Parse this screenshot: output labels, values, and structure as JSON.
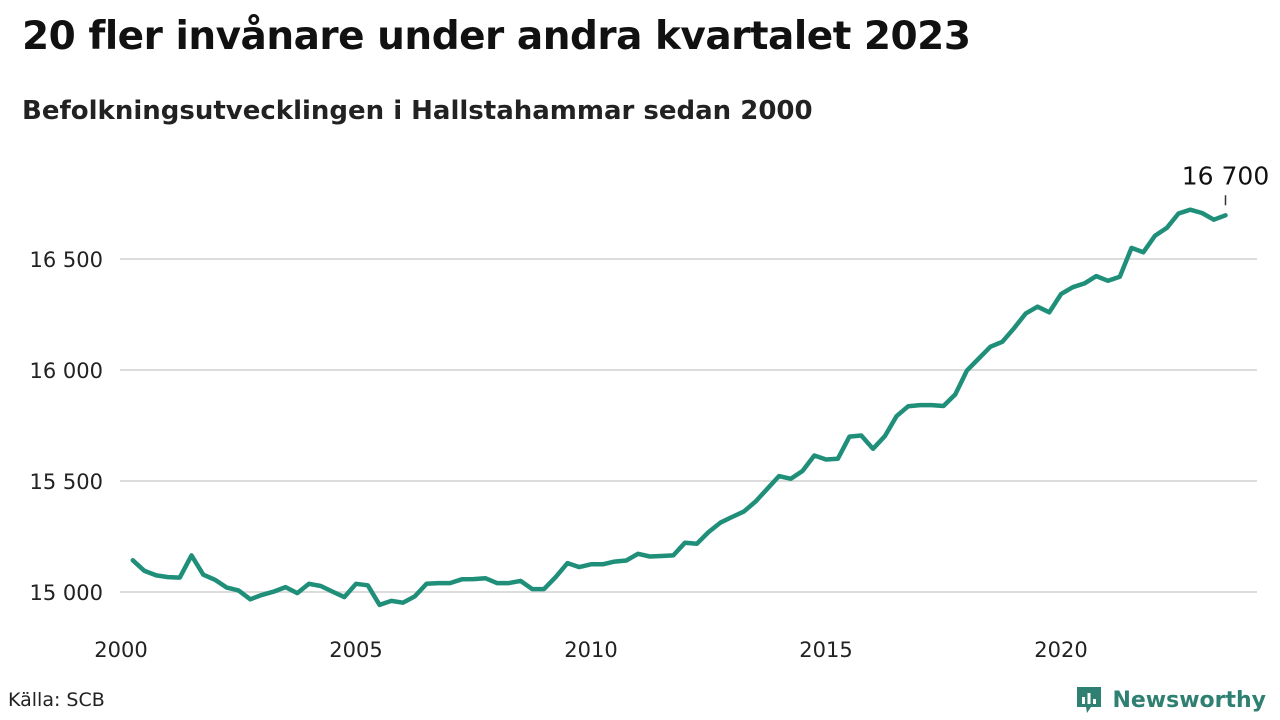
{
  "title": "20 fler invånare under andra kvartalet 2023",
  "subtitle": "Befolkningsutvecklingen i Hallstahammar sedan 2000",
  "source": "Källa: SCB",
  "brand": {
    "name": "Newsworthy",
    "icon": "newsworthy-logo-icon",
    "color": "#2f7f72"
  },
  "chart_data": {
    "type": "line",
    "title": "20 fler invånare under andra kvartalet 2023",
    "subtitle": "Befolkningsutvecklingen i Hallstahammar sedan 2000",
    "xlabel": "",
    "ylabel": "",
    "xlim": [
      2000,
      2024.6
    ],
    "ylim": [
      14900,
      16740
    ],
    "grid": true,
    "x_ticks": [
      {
        "value": 2000,
        "label": "2000"
      },
      {
        "value": 2005,
        "label": "2005"
      },
      {
        "value": 2010,
        "label": "2010"
      },
      {
        "value": 2015,
        "label": "2015"
      },
      {
        "value": 2020,
        "label": "2020"
      }
    ],
    "y_ticks": [
      {
        "value": 15000,
        "label": "15 000"
      },
      {
        "value": 15500,
        "label": "15 500"
      },
      {
        "value": 16000,
        "label": "16 000"
      },
      {
        "value": 16500,
        "label": "16 500"
      }
    ],
    "annotation": {
      "label": "16 700",
      "x": 2023.5,
      "y": 16697
    },
    "series": [
      {
        "color": "#1f8f7a",
        "x": [
          2000.25,
          2000.5,
          2000.75,
          2001,
          2001.25,
          2001.5,
          2001.75,
          2002,
          2002.25,
          2002.5,
          2002.75,
          2003,
          2003.25,
          2003.5,
          2003.75,
          2004,
          2004.25,
          2004.5,
          2004.75,
          2005,
          2005.25,
          2005.5,
          2005.75,
          2006,
          2006.25,
          2006.5,
          2006.75,
          2007,
          2007.25,
          2007.5,
          2007.75,
          2008,
          2008.25,
          2008.5,
          2008.75,
          2009,
          2009.25,
          2009.5,
          2009.75,
          2010,
          2010.25,
          2010.5,
          2010.75,
          2011,
          2011.25,
          2011.5,
          2011.75,
          2012,
          2012.25,
          2012.5,
          2012.75,
          2013,
          2013.25,
          2013.5,
          2013.75,
          2014,
          2014.25,
          2014.5,
          2014.75,
          2015,
          2015.25,
          2015.5,
          2015.75,
          2016,
          2016.25,
          2016.5,
          2016.75,
          2017,
          2017.25,
          2017.5,
          2017.75,
          2018,
          2018.25,
          2018.5,
          2018.75,
          2019,
          2019.25,
          2019.5,
          2019.75,
          2020,
          2020.25,
          2020.5,
          2020.75,
          2021,
          2021.25,
          2021.5,
          2021.75,
          2022,
          2022.25,
          2022.5,
          2022.75,
          2023,
          2023.25,
          2023.5
        ],
        "y": [
          15143,
          15095,
          15075,
          15067,
          15065,
          15165,
          15078,
          15055,
          15020,
          15007,
          14967,
          14987,
          15002,
          15022,
          14995,
          15037,
          15027,
          15002,
          14977,
          15037,
          15030,
          14942,
          14960,
          14952,
          14980,
          15037,
          15040,
          15040,
          15057,
          15058,
          15062,
          15040,
          15040,
          15050,
          15013,
          15013,
          15068,
          15130,
          15112,
          15125,
          15125,
          15137,
          15142,
          15172,
          15160,
          15162,
          15165,
          15222,
          15217,
          15270,
          15312,
          15338,
          15362,
          15407,
          15465,
          15522,
          15510,
          15545,
          15615,
          15597,
          15600,
          15700,
          15705,
          15645,
          15702,
          15792,
          15837,
          15842,
          15842,
          15838,
          15890,
          15998,
          16052,
          16105,
          16127,
          16188,
          16255,
          16285,
          16260,
          16342,
          16373,
          16390,
          16423,
          16402,
          16420,
          16550,
          16530,
          16605,
          16640,
          16705,
          16722,
          16707,
          16677,
          16697
        ]
      }
    ]
  }
}
